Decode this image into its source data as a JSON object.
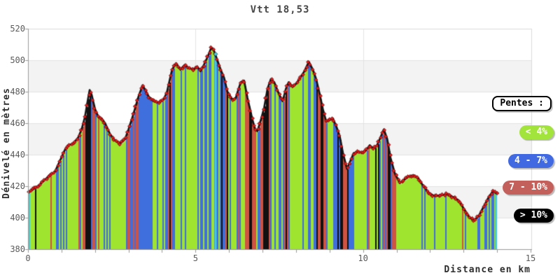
{
  "title": "Vtt 18,53",
  "axes": {
    "y_label": "Dénivelé en mètres",
    "x_label": "Distance en km",
    "y_ticks": [
      380,
      400,
      420,
      440,
      460,
      480,
      500,
      520
    ],
    "x_ticks": [
      0,
      5,
      10,
      15
    ]
  },
  "legend": {
    "header": "Pentes :",
    "items": [
      {
        "label": "< 4%",
        "color": "#a2e43b"
      },
      {
        "label": "4 - 7%",
        "color": "#4169e1"
      },
      {
        "label": "7 - 10%",
        "color": "#c4605c"
      },
      {
        "label": "> 10%",
        "color": "#000000"
      }
    ]
  },
  "chart_data": {
    "type": "area",
    "title": "Vtt 18,53",
    "xlabel": "Distance en km",
    "ylabel": "Dénivelé en mètres",
    "xlim": [
      0,
      15
    ],
    "ylim": [
      380,
      520
    ],
    "grid": true,
    "legend_position": "right",
    "route_end_km": 14.0,
    "x_km": [
      0,
      0.15,
      0.3,
      0.5,
      0.65,
      0.8,
      0.95,
      1.1,
      1.2,
      1.35,
      1.5,
      1.6,
      1.7,
      1.78,
      1.84,
      1.9,
      2.0,
      2.1,
      2.2,
      2.3,
      2.45,
      2.6,
      2.75,
      2.9,
      3.0,
      3.15,
      3.3,
      3.42,
      3.5,
      3.6,
      3.75,
      3.9,
      4.05,
      4.15,
      4.3,
      4.42,
      4.55,
      4.68,
      4.8,
      4.95,
      5.05,
      5.15,
      5.25,
      5.38,
      5.47,
      5.55,
      5.65,
      5.75,
      5.85,
      5.95,
      6.1,
      6.2,
      6.35,
      6.45,
      6.55,
      6.7,
      6.78,
      6.85,
      6.95,
      7.05,
      7.15,
      7.25,
      7.35,
      7.5,
      7.6,
      7.7,
      7.78,
      7.9,
      8.0,
      8.1,
      8.25,
      8.38,
      8.5,
      8.6,
      8.7,
      8.8,
      8.9,
      9.0,
      9.1,
      9.2,
      9.3,
      9.4,
      9.52,
      9.62,
      9.72,
      9.85,
      10.0,
      10.1,
      10.2,
      10.3,
      10.42,
      10.52,
      10.62,
      10.72,
      10.82,
      10.95,
      11.1,
      11.22,
      11.35,
      11.5,
      11.65,
      11.8,
      11.95,
      12.1,
      12.3,
      12.5,
      12.7,
      12.85,
      13.0,
      13.15,
      13.3,
      13.45,
      13.6,
      13.75,
      13.88,
      14.0
    ],
    "elevation_m": [
      416,
      418,
      420,
      424,
      427,
      429,
      436,
      443,
      446,
      447,
      451,
      456,
      464,
      474,
      481,
      478,
      469,
      464,
      463,
      460,
      453,
      449,
      447,
      450,
      456,
      466,
      477,
      484,
      481,
      477,
      474,
      473,
      475,
      480,
      494,
      498,
      494,
      497,
      495,
      494,
      496,
      493,
      497,
      503,
      508,
      506,
      500,
      494,
      489,
      480,
      475,
      476,
      486,
      487,
      476,
      462,
      456,
      455,
      462,
      470,
      482,
      488,
      486,
      478,
      474,
      482,
      486,
      483,
      485,
      488,
      493,
      499,
      494,
      488,
      479,
      469,
      461,
      462,
      463,
      458,
      452,
      441,
      431,
      436,
      441,
      442,
      441,
      443,
      446,
      444,
      446,
      451,
      456,
      450,
      438,
      428,
      422,
      424,
      426,
      427,
      425,
      420,
      416,
      414,
      414,
      415,
      413,
      411,
      406,
      401,
      398,
      401,
      407,
      413,
      417,
      415
    ],
    "slope_categories": [
      {
        "label": "< 4%",
        "max_percent": 4,
        "color": "#9fe42f"
      },
      {
        "label": "4 - 7%",
        "max_percent": 7,
        "color": "#3f6edd"
      },
      {
        "label": "7 - 10%",
        "max_percent": 10,
        "color": "#cf5340"
      },
      {
        "label": "> 10%",
        "max_percent": null,
        "color": "#111111"
      }
    ],
    "highlight_bars_km": [
      0.03,
      5.6,
      13.97
    ],
    "colors": {
      "highlight": "#41cbdf",
      "marker": "#e31919",
      "line": "#151515",
      "band_gray": "#f3f3f3",
      "gridline": "#e4e4e4",
      "axis": "#9a9a9a"
    }
  }
}
